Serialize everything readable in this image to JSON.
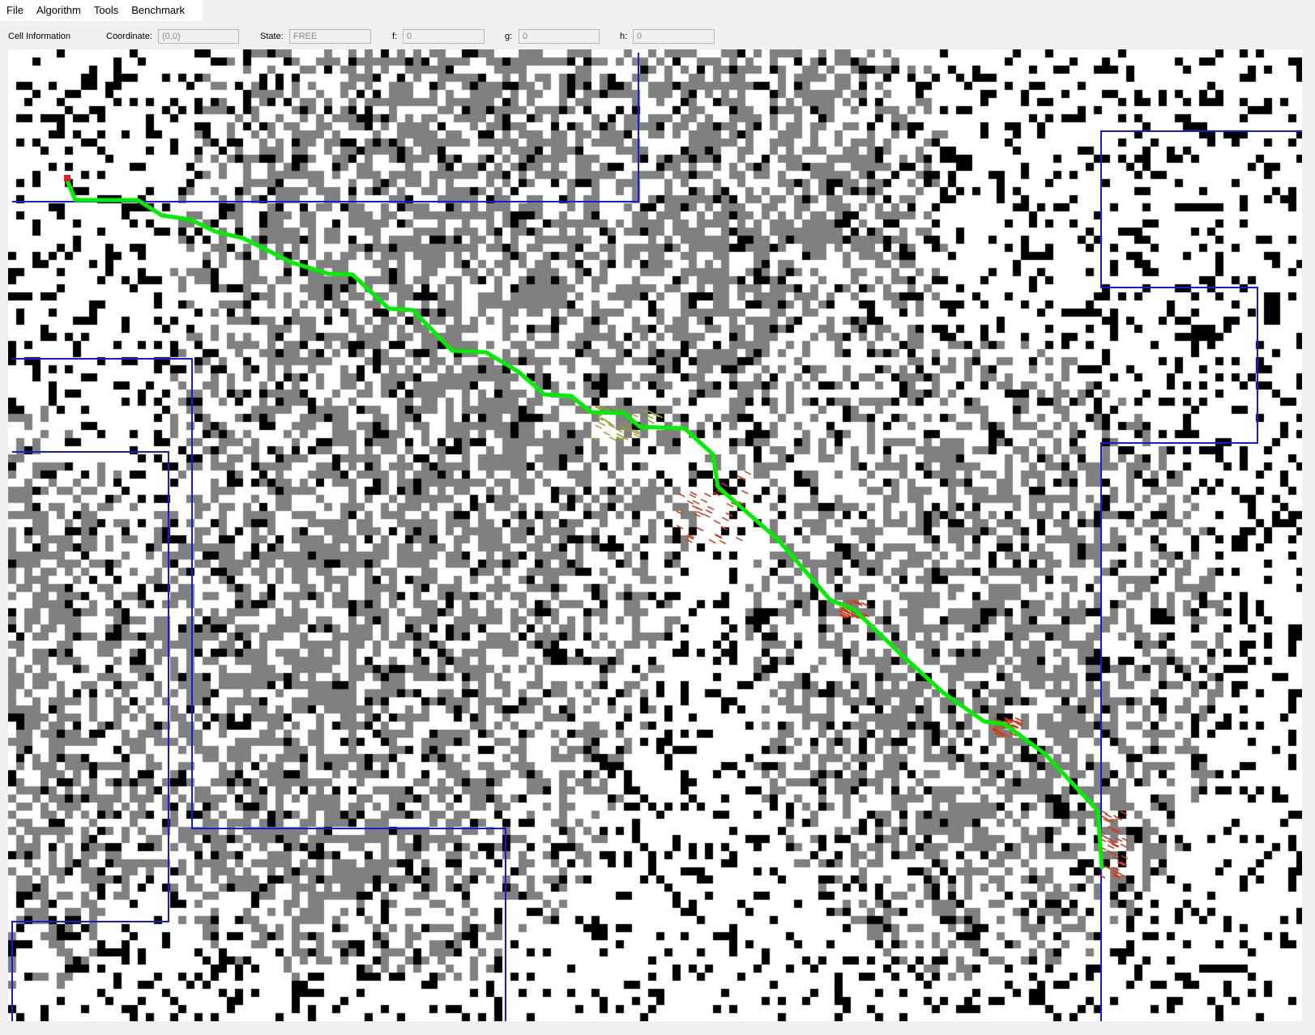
{
  "menu": {
    "items": [
      {
        "label": "File"
      },
      {
        "label": "Algorithm"
      },
      {
        "label": "Tools"
      },
      {
        "label": "Benchmark"
      }
    ]
  },
  "cell_info": {
    "title": "Cell Information",
    "coordinate_label": "Coordinate:",
    "coordinate_value": "(0,0)",
    "state_label": "State:",
    "state_value": "FREE",
    "f_label": "f:",
    "f_value": "0",
    "g_label": "g:",
    "g_value": "0",
    "h_label": "h:",
    "h_value": "0"
  },
  "grid": {
    "colors": {
      "free": "#ffffff",
      "blocked": "#000000",
      "hard": "#808080",
      "path": "#00ee00",
      "region_border": "#1a1ad6",
      "start": "#e02020",
      "explored": "#d23a1a",
      "explored_alt": "#9aa030"
    }
  }
}
